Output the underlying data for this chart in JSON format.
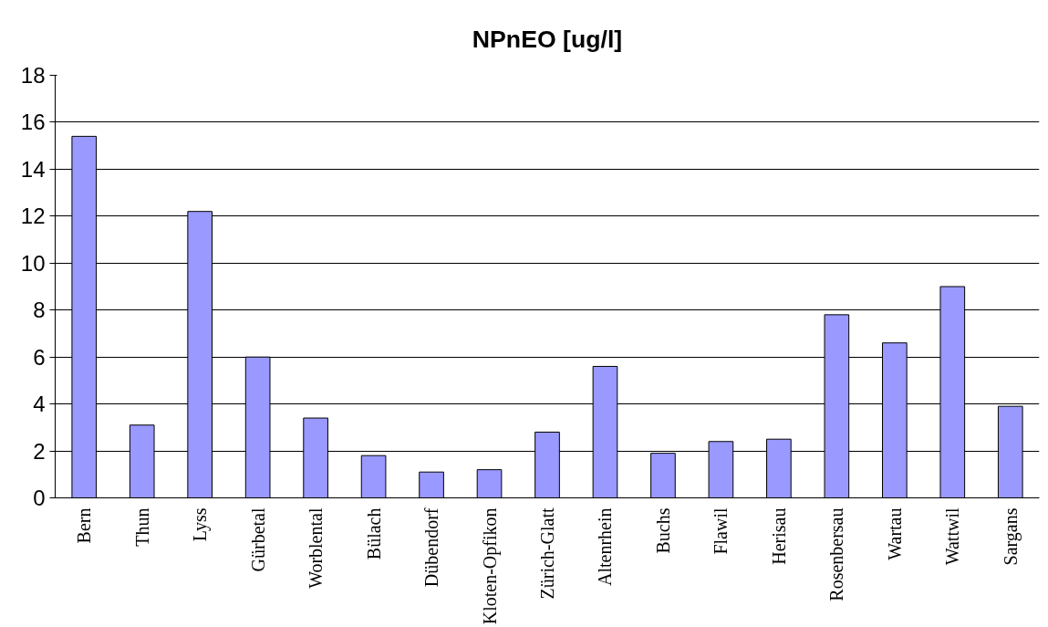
{
  "chart_data": {
    "type": "bar",
    "title": "NPnEO [ug/l]",
    "categories": [
      "Bern",
      "Thun",
      "Lyss",
      "Gürbetal",
      "Worblental",
      "Bülach",
      "Dübendorf",
      "Kloten-Opfikon",
      "Zürich-Glatt",
      "Altenrhein",
      "Buchs",
      "Flawil",
      "Herisau",
      "Rosenbersau",
      "Wartau",
      "Wattwil",
      "Sargans"
    ],
    "values": [
      15.4,
      3.1,
      12.2,
      6.0,
      3.4,
      1.8,
      1.1,
      1.2,
      2.8,
      5.6,
      1.9,
      2.4,
      2.5,
      7.8,
      6.6,
      9.0,
      3.9
    ],
    "color": "#9999ff",
    "ylim": [
      0,
      18
    ],
    "yticks": [
      0,
      2,
      4,
      6,
      8,
      10,
      12,
      14,
      16,
      18
    ],
    "grid": "y"
  }
}
